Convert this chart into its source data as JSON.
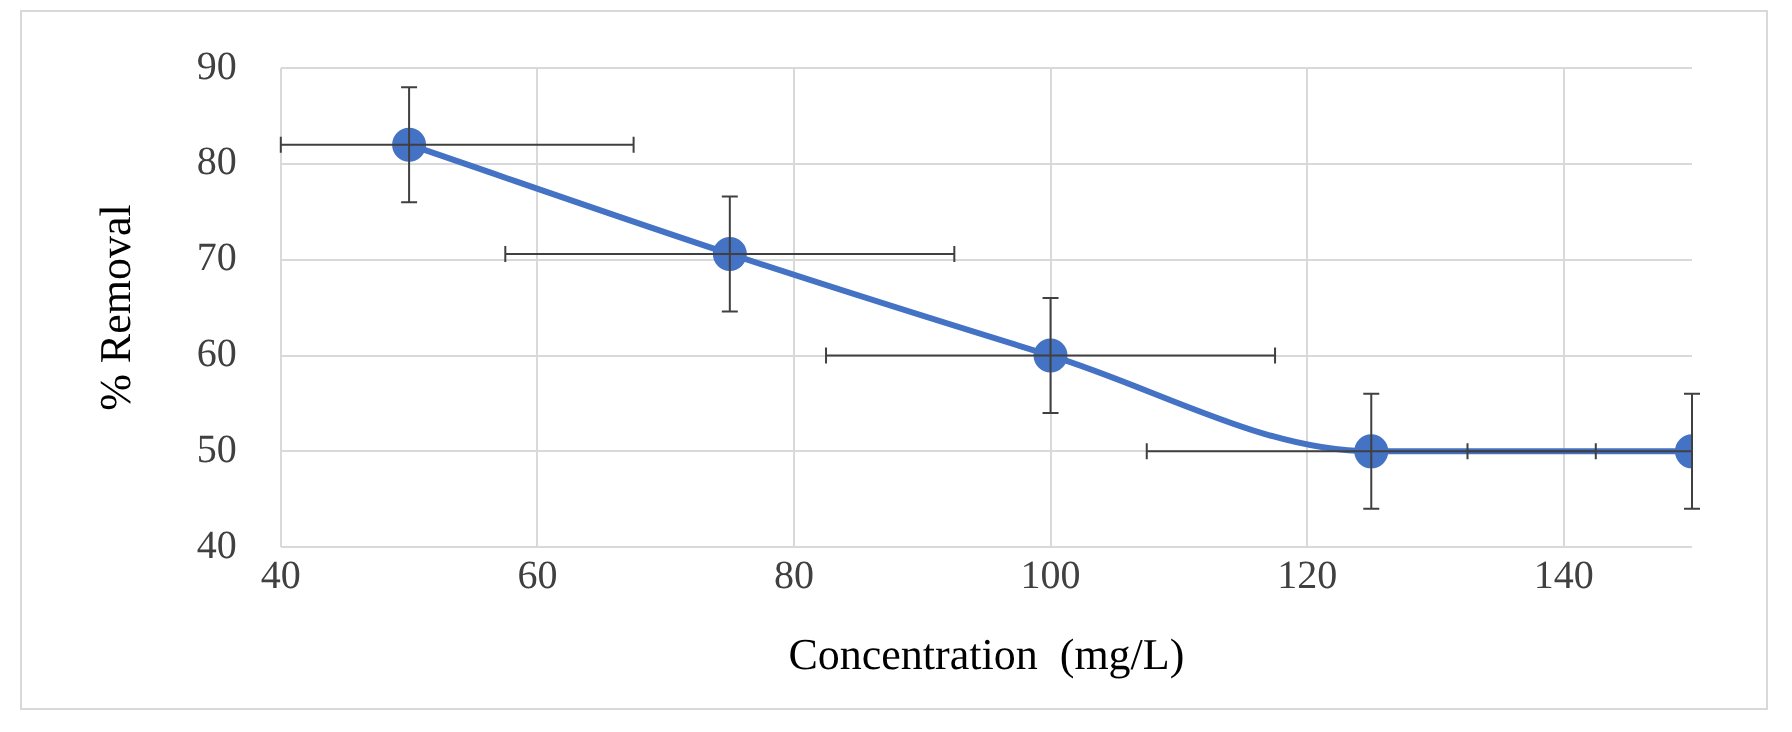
{
  "chart_data": {
    "type": "line",
    "xlabel": "Concentration  (mg/L)",
    "ylabel": "% Removal",
    "x": [
      50,
      75,
      100,
      125,
      150
    ],
    "series": [
      {
        "color": "#4472c4",
        "values": [
          82,
          70.6,
          60,
          50,
          50
        ],
        "errors": [
          6,
          6,
          6,
          6,
          6
        ],
        "xerrors": [
          [
            40,
            67.5
          ],
          [
            57.5,
            92.5
          ],
          [
            82.5,
            117.5
          ],
          [
            107.5,
            142.5
          ],
          [
            132.5,
            150
          ]
        ]
      }
    ],
    "xlim": [
      40,
      150
    ],
    "xticks": [
      40,
      60,
      80,
      100,
      120,
      140
    ],
    "ylim": [
      40,
      90
    ],
    "yticks": [
      40,
      50,
      60,
      70,
      80,
      90
    ],
    "grid": true,
    "marker": "circle",
    "line_style": "solid",
    "legend": false
  }
}
